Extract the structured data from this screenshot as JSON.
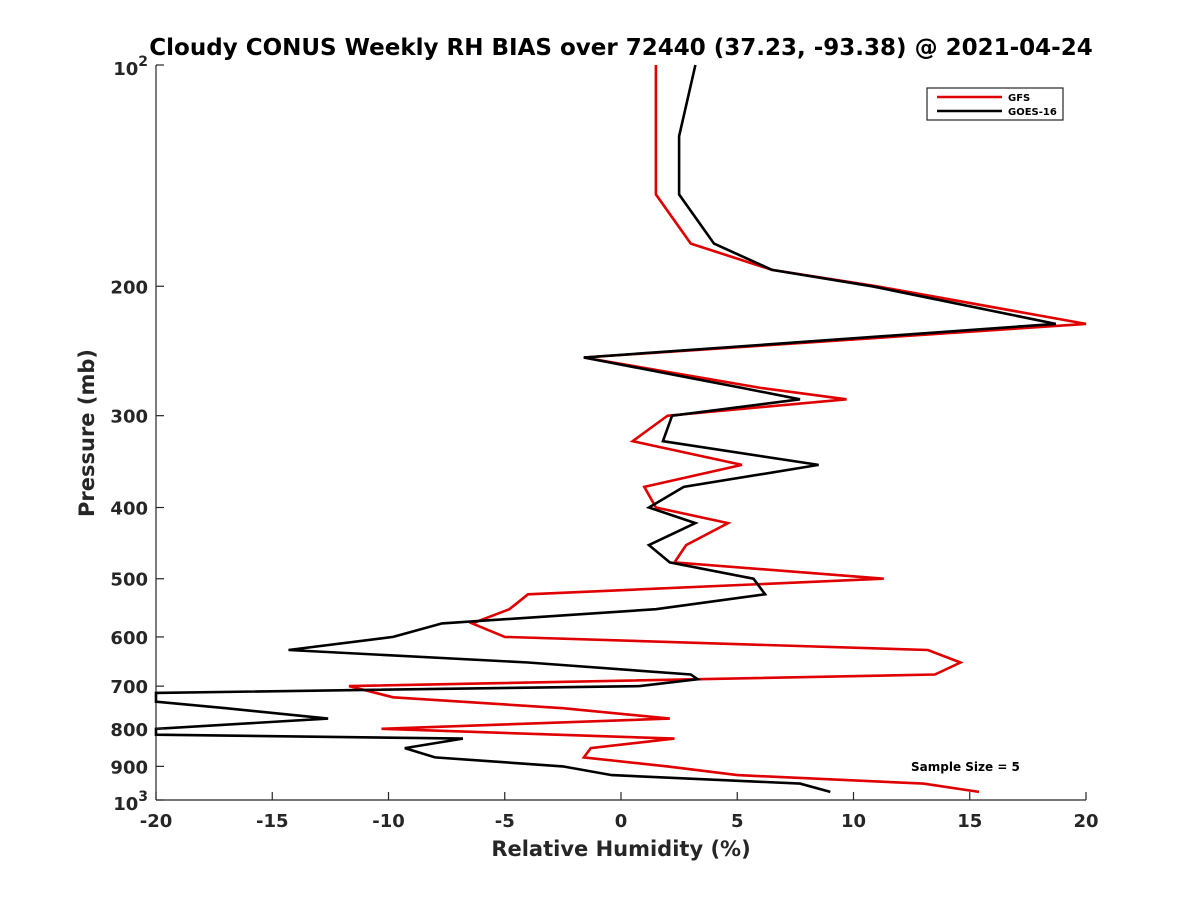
{
  "chart_data": {
    "type": "line",
    "title": "Cloudy CONUS Weekly RH BIAS over 72440 (37.23, -93.38) @ 2021-04-24",
    "xlabel": "Relative Humidity (%)",
    "ylabel": "Pressure (mb)",
    "xlim": [
      -20,
      20
    ],
    "ylim": [
      100,
      1000
    ],
    "y_scale": "log",
    "y_reversed": true,
    "grid": false,
    "legend_position": "top-right",
    "x_ticks": [
      -20,
      -15,
      -10,
      -5,
      0,
      5,
      10,
      15,
      20
    ],
    "y_ticks": [
      {
        "value": 100,
        "base": "10",
        "exp": "2"
      },
      {
        "value": 200,
        "label": "200"
      },
      {
        "value": 300,
        "label": "300"
      },
      {
        "value": 400,
        "label": "400"
      },
      {
        "value": 500,
        "label": "500"
      },
      {
        "value": 600,
        "label": "600"
      },
      {
        "value": 700,
        "label": "700"
      },
      {
        "value": 800,
        "label": "800"
      },
      {
        "value": 900,
        "label": "900"
      },
      {
        "value": 1000,
        "base": "10",
        "exp": "3"
      }
    ],
    "annotation": "Sample Size = 5",
    "series": [
      {
        "name": "GFS",
        "color": "#e00000",
        "points": [
          [
            1.5,
            100
          ],
          [
            1.5,
            125
          ],
          [
            1.5,
            150
          ],
          [
            3.0,
            175
          ],
          [
            6.5,
            190
          ],
          [
            11.0,
            200
          ],
          [
            20.0,
            225
          ],
          [
            -1.6,
            250
          ],
          [
            6.0,
            275
          ],
          [
            9.7,
            285
          ],
          [
            2.0,
            300
          ],
          [
            0.5,
            325
          ],
          [
            5.2,
            350
          ],
          [
            1.0,
            375
          ],
          [
            1.5,
            400
          ],
          [
            4.6,
            420
          ],
          [
            2.8,
            450
          ],
          [
            2.3,
            475
          ],
          [
            11.3,
            500
          ],
          [
            -4.0,
            525
          ],
          [
            -4.8,
            550
          ],
          [
            -6.4,
            575
          ],
          [
            -5.0,
            600
          ],
          [
            13.2,
            625
          ],
          [
            14.6,
            650
          ],
          [
            13.5,
            675
          ],
          [
            -11.7,
            700
          ],
          [
            -9.8,
            725
          ],
          [
            -2.5,
            750
          ],
          [
            2.1,
            775
          ],
          [
            -10.3,
            800
          ],
          [
            2.3,
            825
          ],
          [
            -1.3,
            850
          ],
          [
            -1.6,
            875
          ],
          [
            2.0,
            900
          ],
          [
            5.0,
            925
          ],
          [
            13.0,
            950
          ],
          [
            15.4,
            975
          ]
        ]
      },
      {
        "name": "GOES-16",
        "color": "#000000",
        "points": [
          [
            3.2,
            100
          ],
          [
            2.5,
            125
          ],
          [
            2.5,
            150
          ],
          [
            4.0,
            175
          ],
          [
            6.5,
            190
          ],
          [
            10.8,
            200
          ],
          [
            18.7,
            225
          ],
          [
            -1.6,
            250
          ],
          [
            5.2,
            275
          ],
          [
            7.7,
            285
          ],
          [
            2.2,
            300
          ],
          [
            1.8,
            325
          ],
          [
            8.5,
            350
          ],
          [
            2.7,
            375
          ],
          [
            1.2,
            400
          ],
          [
            3.2,
            420
          ],
          [
            1.2,
            450
          ],
          [
            2.1,
            475
          ],
          [
            5.7,
            500
          ],
          [
            6.2,
            525
          ],
          [
            1.5,
            550
          ],
          [
            -7.7,
            575
          ],
          [
            -9.8,
            600
          ],
          [
            -14.3,
            625
          ],
          [
            -4.0,
            650
          ],
          [
            3.0,
            675
          ],
          [
            3.3,
            685
          ],
          [
            0.8,
            700
          ],
          [
            -20.0,
            715
          ],
          [
            -20.0,
            735
          ],
          [
            -17.0,
            750
          ],
          [
            -12.6,
            775
          ],
          [
            -20.0,
            800
          ],
          [
            -20.0,
            815
          ],
          [
            -6.8,
            825
          ],
          [
            -9.3,
            850
          ],
          [
            -8.0,
            875
          ],
          [
            -2.5,
            900
          ],
          [
            -0.4,
            925
          ],
          [
            7.7,
            950
          ],
          [
            9.0,
            975
          ]
        ]
      }
    ]
  }
}
